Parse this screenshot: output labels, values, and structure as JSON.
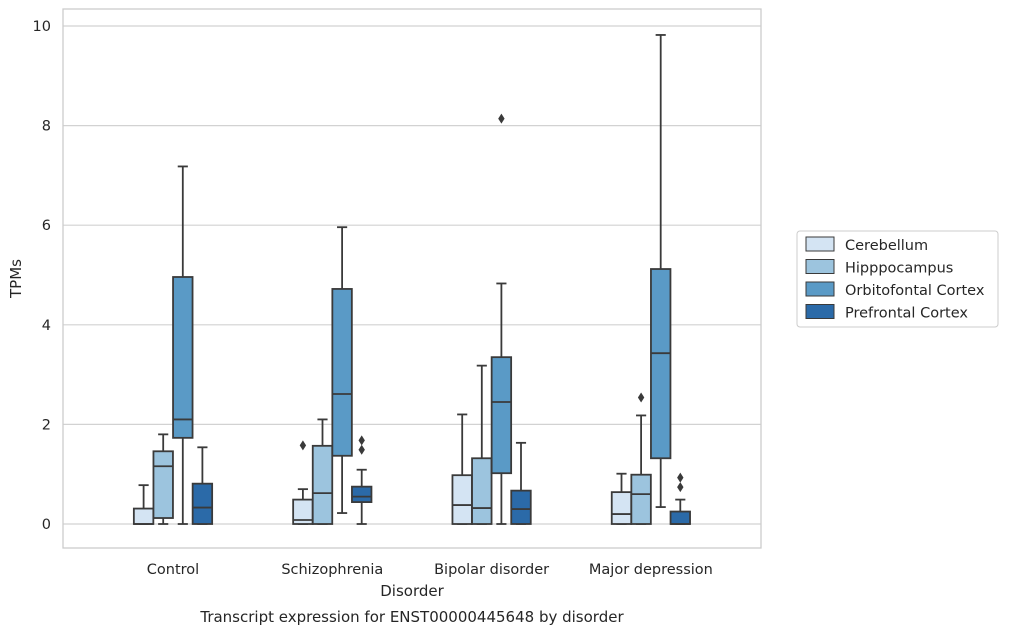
{
  "chart_data": {
    "type": "box",
    "title": "",
    "caption": "Transcript expression for ENST00000445648 by disorder",
    "xlabel": "Disorder",
    "ylabel": "TPMs",
    "ylim": [
      -0.48,
      10.35
    ],
    "yticks": [
      0,
      2,
      4,
      6,
      8,
      10
    ],
    "grid": true,
    "legend_position": "right",
    "categories": [
      "Control",
      "Schizophrenia",
      "Bipolar disorder",
      "Major depression"
    ],
    "series": [
      {
        "name": "Cerebellum",
        "color": "#d4e4f3",
        "boxes": [
          {
            "whisker_low": 0,
            "q1": 0,
            "median": 0,
            "q3": 0.31,
            "whisker_high": 0.78,
            "outliers": []
          },
          {
            "whisker_low": 0,
            "q1": 0,
            "median": 0.08,
            "q3": 0.49,
            "whisker_high": 0.7,
            "outliers": [
              1.58
            ]
          },
          {
            "whisker_low": 0,
            "q1": 0,
            "median": 0.38,
            "q3": 0.98,
            "whisker_high": 2.2,
            "outliers": []
          },
          {
            "whisker_low": 0,
            "q1": 0,
            "median": 0.2,
            "q3": 0.64,
            "whisker_high": 1.01,
            "outliers": []
          }
        ]
      },
      {
        "name": "Hipppocampus",
        "color": "#9cc4de",
        "boxes": [
          {
            "whisker_low": 0,
            "q1": 0.12,
            "median": 1.16,
            "q3": 1.46,
            "whisker_high": 1.8,
            "outliers": []
          },
          {
            "whisker_low": 0,
            "q1": 0,
            "median": 0.62,
            "q3": 1.57,
            "whisker_high": 2.1,
            "outliers": []
          },
          {
            "whisker_low": 0,
            "q1": 0,
            "median": 0.32,
            "q3": 1.32,
            "whisker_high": 3.18,
            "outliers": []
          },
          {
            "whisker_low": 0,
            "q1": 0,
            "median": 0.6,
            "q3": 0.99,
            "whisker_high": 2.18,
            "outliers": [
              2.54
            ]
          }
        ]
      },
      {
        "name": "Orbitofontal Cortex",
        "color": "#5a9ac6",
        "boxes": [
          {
            "whisker_low": 0,
            "q1": 1.73,
            "median": 2.1,
            "q3": 4.96,
            "whisker_high": 7.18,
            "outliers": []
          },
          {
            "whisker_low": 0.22,
            "q1": 1.37,
            "median": 2.61,
            "q3": 4.72,
            "whisker_high": 5.96,
            "outliers": []
          },
          {
            "whisker_low": 0,
            "q1": 1.02,
            "median": 2.45,
            "q3": 3.35,
            "whisker_high": 4.83,
            "outliers": [
              8.14
            ]
          },
          {
            "whisker_low": 0.34,
            "q1": 1.32,
            "median": 3.43,
            "q3": 5.12,
            "whisker_high": 9.82,
            "outliers": []
          }
        ]
      },
      {
        "name": "Prefrontal Cortex",
        "color": "#2b6aa8",
        "boxes": [
          {
            "whisker_low": 0,
            "q1": 0,
            "median": 0.33,
            "q3": 0.81,
            "whisker_high": 1.54,
            "outliers": []
          },
          {
            "whisker_low": 0,
            "q1": 0.44,
            "median": 0.55,
            "q3": 0.75,
            "whisker_high": 1.09,
            "outliers": [
              1.49,
              1.68
            ]
          },
          {
            "whisker_low": 0,
            "q1": 0,
            "median": 0.3,
            "q3": 0.67,
            "whisker_high": 1.63,
            "outliers": []
          },
          {
            "whisker_low": 0,
            "q1": 0,
            "median": 0,
            "q3": 0.25,
            "whisker_high": 0.49,
            "outliers": [
              0.74,
              0.93
            ]
          }
        ]
      }
    ]
  }
}
